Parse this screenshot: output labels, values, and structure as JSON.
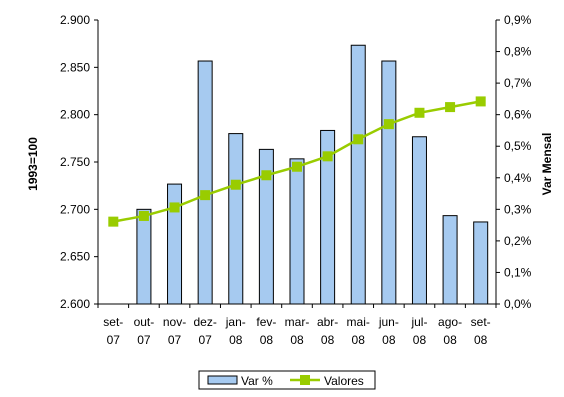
{
  "chart_data": {
    "type": "bar+line",
    "categories": [
      [
        "set-",
        "07"
      ],
      [
        "out-",
        "07"
      ],
      [
        "nov-",
        "07"
      ],
      [
        "dez-",
        "07"
      ],
      [
        "jan-",
        "08"
      ],
      [
        "fev-",
        "08"
      ],
      [
        "mar-",
        "08"
      ],
      [
        "abr-",
        "08"
      ],
      [
        "mai-",
        "08"
      ],
      [
        "jun-",
        "08"
      ],
      [
        "jul-",
        "08"
      ],
      [
        "ago-",
        "08"
      ],
      [
        "set-",
        "08"
      ]
    ],
    "series": [
      {
        "name": "Var %",
        "type": "bar",
        "axis": "right",
        "color": "#a6caf0",
        "values": [
          null,
          0.3,
          0.38,
          0.77,
          0.54,
          0.49,
          0.46,
          0.55,
          0.82,
          0.77,
          0.53,
          0.28,
          0.26
        ]
      },
      {
        "name": "Valores",
        "type": "line",
        "axis": "left",
        "color": "#99cc00",
        "values": [
          2687,
          2693,
          2702,
          2715,
          2726,
          2736,
          2745,
          2756,
          2774,
          2790,
          2802,
          2808,
          2814
        ]
      }
    ],
    "y_left": {
      "label": "1993=100",
      "range": [
        2600,
        2900
      ],
      "ticks": [
        "2.600",
        "2.650",
        "2.700",
        "2.750",
        "2.800",
        "2.850",
        "2.900"
      ]
    },
    "y_right": {
      "label": "Var Mensal",
      "range": [
        0,
        0.9
      ],
      "ticks": [
        "0,0%",
        "0,1%",
        "0,2%",
        "0,3%",
        "0,4%",
        "0,5%",
        "0,6%",
        "0,7%",
        "0,8%",
        "0,9%"
      ]
    },
    "grid": false,
    "legend": {
      "position": "bottom",
      "entries": [
        "Var %",
        "Valores"
      ]
    }
  }
}
